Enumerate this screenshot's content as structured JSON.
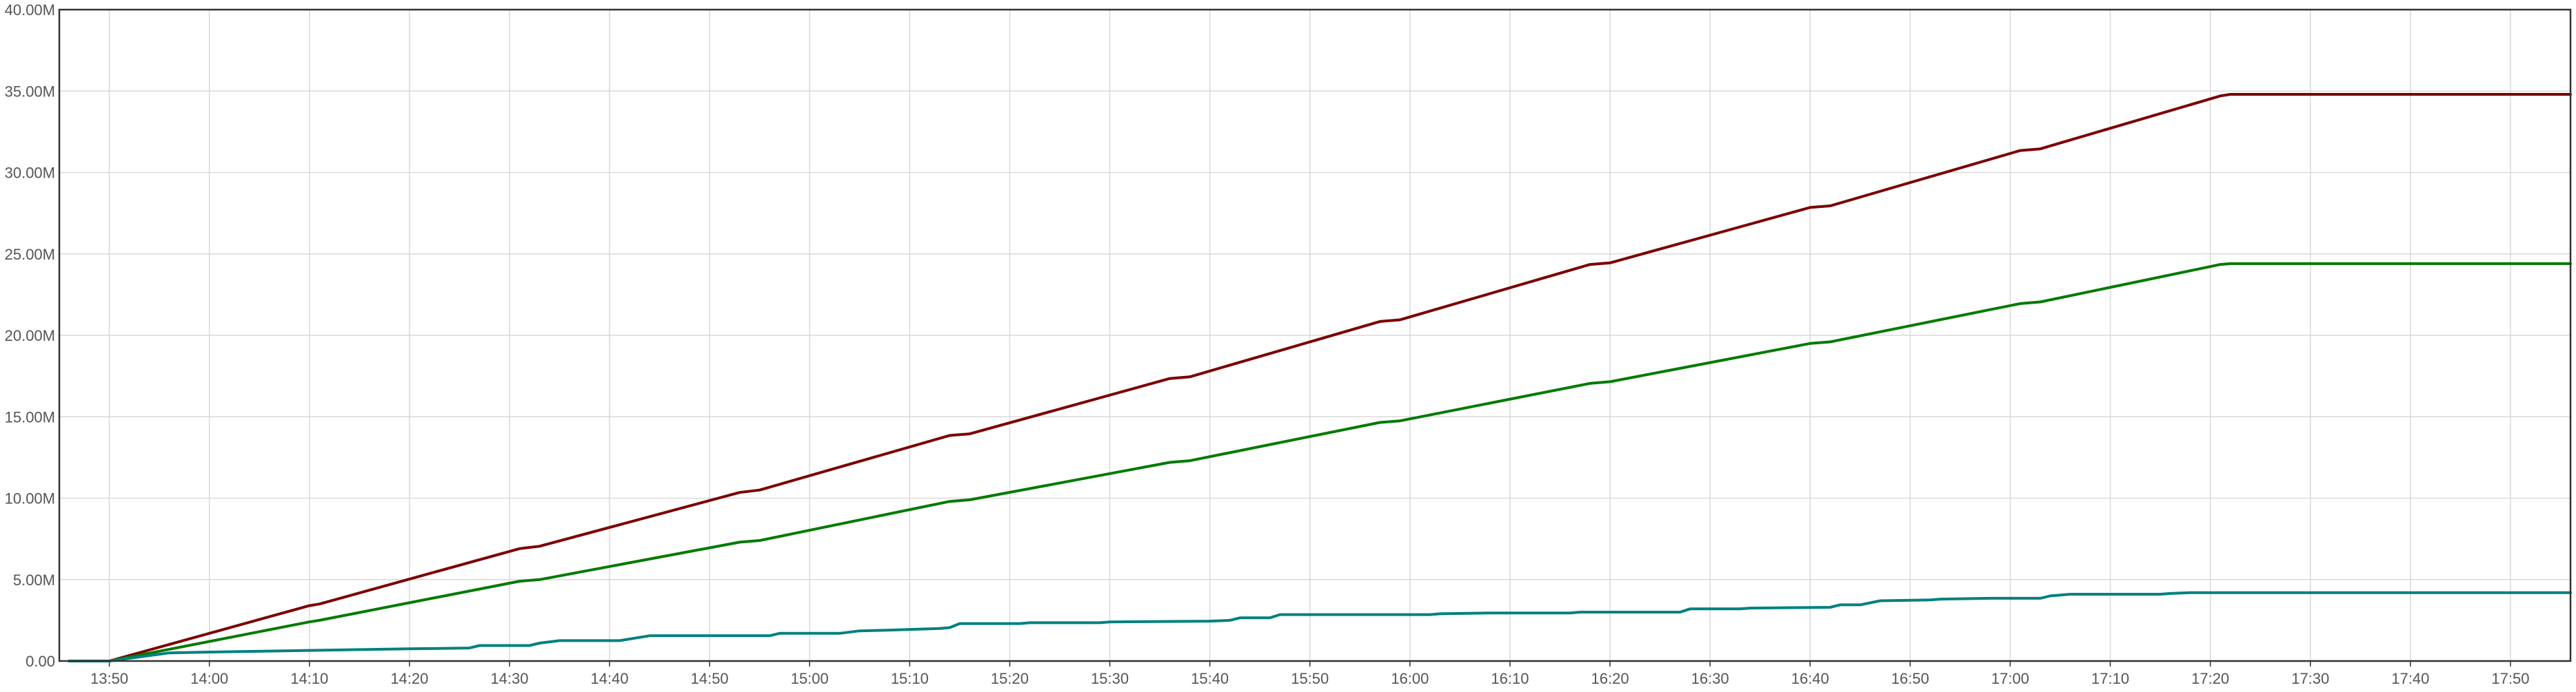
{
  "chart_data": {
    "type": "line",
    "x_unit": "time",
    "x_ticks": [
      "13:50",
      "14:00",
      "14:10",
      "14:20",
      "14:30",
      "14:40",
      "14:50",
      "15:00",
      "15:10",
      "15:20",
      "15:30",
      "15:40",
      "15:50",
      "16:00",
      "16:10",
      "16:20",
      "16:30",
      "16:40",
      "16:50",
      "17:00",
      "17:10",
      "17:20",
      "17:30",
      "17:40",
      "17:50"
    ],
    "x_range": [
      "13:45",
      "17:56"
    ],
    "y_ticks": [
      "0.00",
      "5.00M",
      "10.00M",
      "15.00M",
      "20.00M",
      "25.00M",
      "30.00M",
      "35.00M",
      "40.00M"
    ],
    "ylim": [
      0,
      40000000
    ],
    "grid": true,
    "legend": "none",
    "series": [
      {
        "color": "#7b0000",
        "points": [
          [
            "13:46",
            0
          ],
          [
            "13:50",
            0
          ],
          [
            "14:10",
            3400000
          ],
          [
            "14:11",
            3500000
          ],
          [
            "14:31",
            6900000
          ],
          [
            "14:33",
            7050000
          ],
          [
            "14:53",
            10350000
          ],
          [
            "14:55",
            10500000
          ],
          [
            "15:14",
            13850000
          ],
          [
            "15:16",
            13950000
          ],
          [
            "15:36",
            17350000
          ],
          [
            "15:38",
            17450000
          ],
          [
            "15:57",
            20850000
          ],
          [
            "15:59",
            20950000
          ],
          [
            "16:18",
            24350000
          ],
          [
            "16:20",
            24450000
          ],
          [
            "16:40",
            27850000
          ],
          [
            "16:42",
            27950000
          ],
          [
            "17:01",
            31350000
          ],
          [
            "17:03",
            31450000
          ],
          [
            "17:21",
            34700000
          ],
          [
            "17:22",
            34800000
          ],
          [
            "17:56",
            34800000
          ]
        ]
      },
      {
        "color": "#007a00",
        "points": [
          [
            "13:46",
            0
          ],
          [
            "13:50",
            0
          ],
          [
            "14:10",
            2400000
          ],
          [
            "14:11",
            2500000
          ],
          [
            "14:31",
            4900000
          ],
          [
            "14:33",
            5000000
          ],
          [
            "14:53",
            7300000
          ],
          [
            "14:55",
            7400000
          ],
          [
            "15:14",
            9800000
          ],
          [
            "15:16",
            9900000
          ],
          [
            "15:36",
            12200000
          ],
          [
            "15:38",
            12300000
          ],
          [
            "15:57",
            14650000
          ],
          [
            "15:59",
            14750000
          ],
          [
            "16:18",
            17050000
          ],
          [
            "16:20",
            17150000
          ],
          [
            "16:40",
            19500000
          ],
          [
            "16:42",
            19600000
          ],
          [
            "17:01",
            21950000
          ],
          [
            "17:03",
            22050000
          ],
          [
            "17:21",
            24350000
          ],
          [
            "17:22",
            24400000
          ],
          [
            "17:56",
            24400000
          ]
        ]
      },
      {
        "color": "#008080",
        "points": [
          [
            "13:46",
            0
          ],
          [
            "13:50",
            0
          ],
          [
            "13:56",
            500000
          ],
          [
            "14:00",
            550000
          ],
          [
            "14:10",
            650000
          ],
          [
            "14:20",
            750000
          ],
          [
            "14:26",
            800000
          ],
          [
            "14:27",
            950000
          ],
          [
            "14:32",
            950000
          ],
          [
            "14:33",
            1100000
          ],
          [
            "14:35",
            1250000
          ],
          [
            "14:41",
            1250000
          ],
          [
            "14:44",
            1550000
          ],
          [
            "14:56",
            1550000
          ],
          [
            "14:57",
            1700000
          ],
          [
            "15:03",
            1700000
          ],
          [
            "15:05",
            1850000
          ],
          [
            "15:08",
            1900000
          ],
          [
            "15:13",
            2000000
          ],
          [
            "15:14",
            2050000
          ],
          [
            "15:15",
            2300000
          ],
          [
            "15:21",
            2300000
          ],
          [
            "15:22",
            2350000
          ],
          [
            "15:29",
            2350000
          ],
          [
            "15:30",
            2400000
          ],
          [
            "15:40",
            2450000
          ],
          [
            "15:42",
            2500000
          ],
          [
            "15:43",
            2650000
          ],
          [
            "15:46",
            2650000
          ],
          [
            "15:47",
            2850000
          ],
          [
            "16:02",
            2850000
          ],
          [
            "16:03",
            2900000
          ],
          [
            "16:08",
            2950000
          ],
          [
            "16:16",
            2950000
          ],
          [
            "16:17",
            3000000
          ],
          [
            "16:27",
            3000000
          ],
          [
            "16:28",
            3200000
          ],
          [
            "16:33",
            3200000
          ],
          [
            "16:34",
            3250000
          ],
          [
            "16:42",
            3300000
          ],
          [
            "16:43",
            3450000
          ],
          [
            "16:45",
            3450000
          ],
          [
            "16:47",
            3700000
          ],
          [
            "16:52",
            3750000
          ],
          [
            "16:53",
            3800000
          ],
          [
            "16:58",
            3850000
          ],
          [
            "17:03",
            3850000
          ],
          [
            "17:04",
            4000000
          ],
          [
            "17:05",
            4050000
          ],
          [
            "17:06",
            4100000
          ],
          [
            "17:15",
            4100000
          ],
          [
            "17:16",
            4150000
          ],
          [
            "17:18",
            4200000
          ],
          [
            "17:56",
            4200000
          ]
        ]
      }
    ]
  }
}
